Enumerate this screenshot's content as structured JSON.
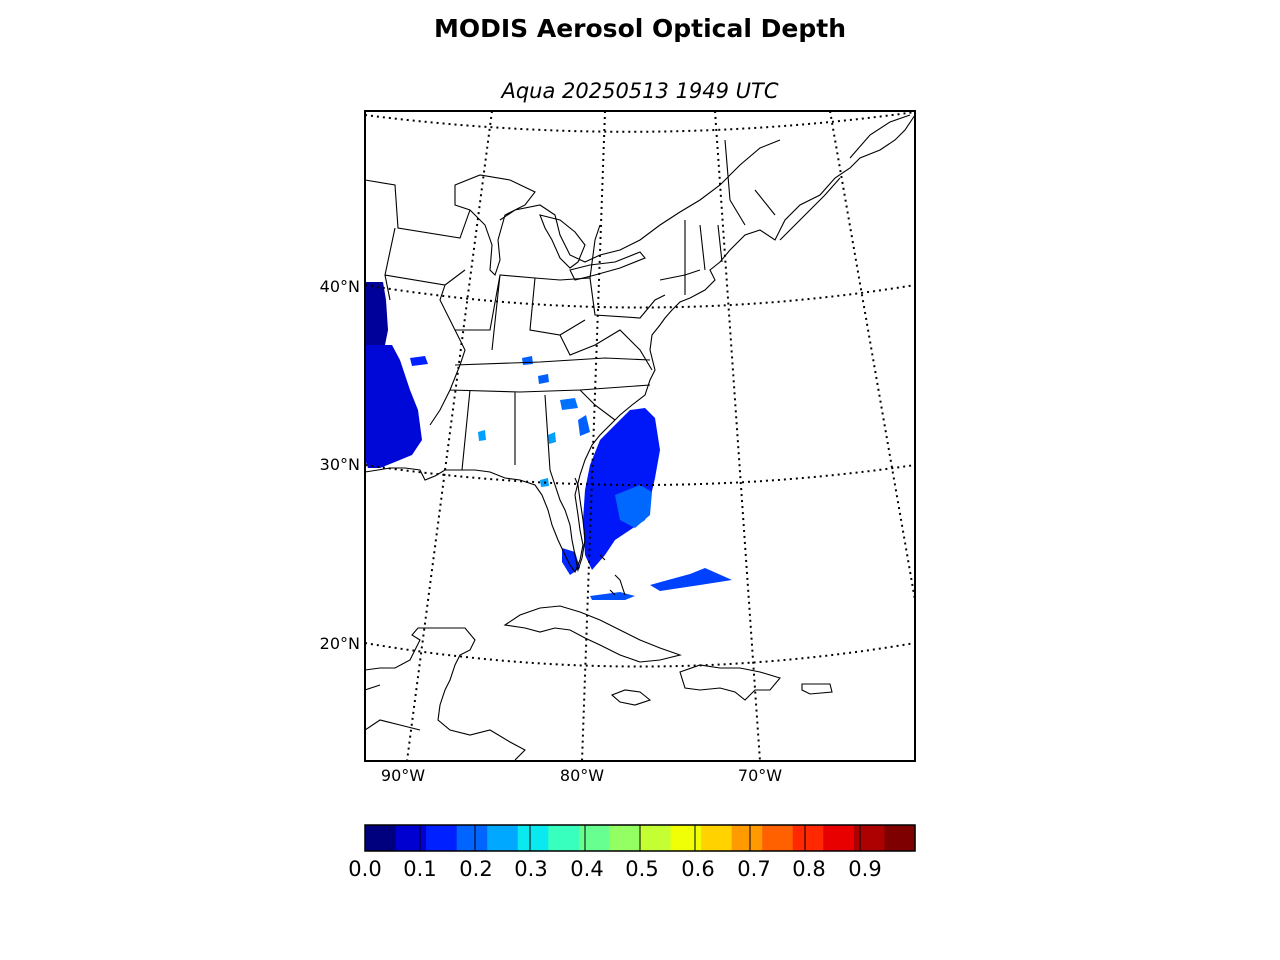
{
  "title": "MODIS Aerosol Optical Depth",
  "subtitle": "Aqua 20250513 1949 UTC",
  "lat_labels": [
    "40°N",
    "30°N",
    "20°N"
  ],
  "lon_labels": [
    "90°W",
    "80°W",
    "70°W"
  ],
  "colorbar": {
    "ticks": [
      "0.0",
      "0.1",
      "0.2",
      "0.3",
      "0.4",
      "0.5",
      "0.6",
      "0.7",
      "0.8",
      "0.9"
    ],
    "range": [
      0.0,
      1.0
    ],
    "colormap": "jet",
    "colors": [
      "#00007f",
      "#0000d0",
      "#0020ff",
      "#0064ff",
      "#00a8ff",
      "#0ae8f0",
      "#38ffbe",
      "#66ff90",
      "#94ff62",
      "#c4ff33",
      "#f0ff06",
      "#ffd200",
      "#ff9a00",
      "#ff6000",
      "#ff2800",
      "#e80000",
      "#ad0000",
      "#7f0000"
    ]
  },
  "aod_colors": {
    "dark_blue": "#0000b8",
    "blue": "#0020ff",
    "light_blue": "#0060ff",
    "cyan_blue": "#00a0ff"
  }
}
